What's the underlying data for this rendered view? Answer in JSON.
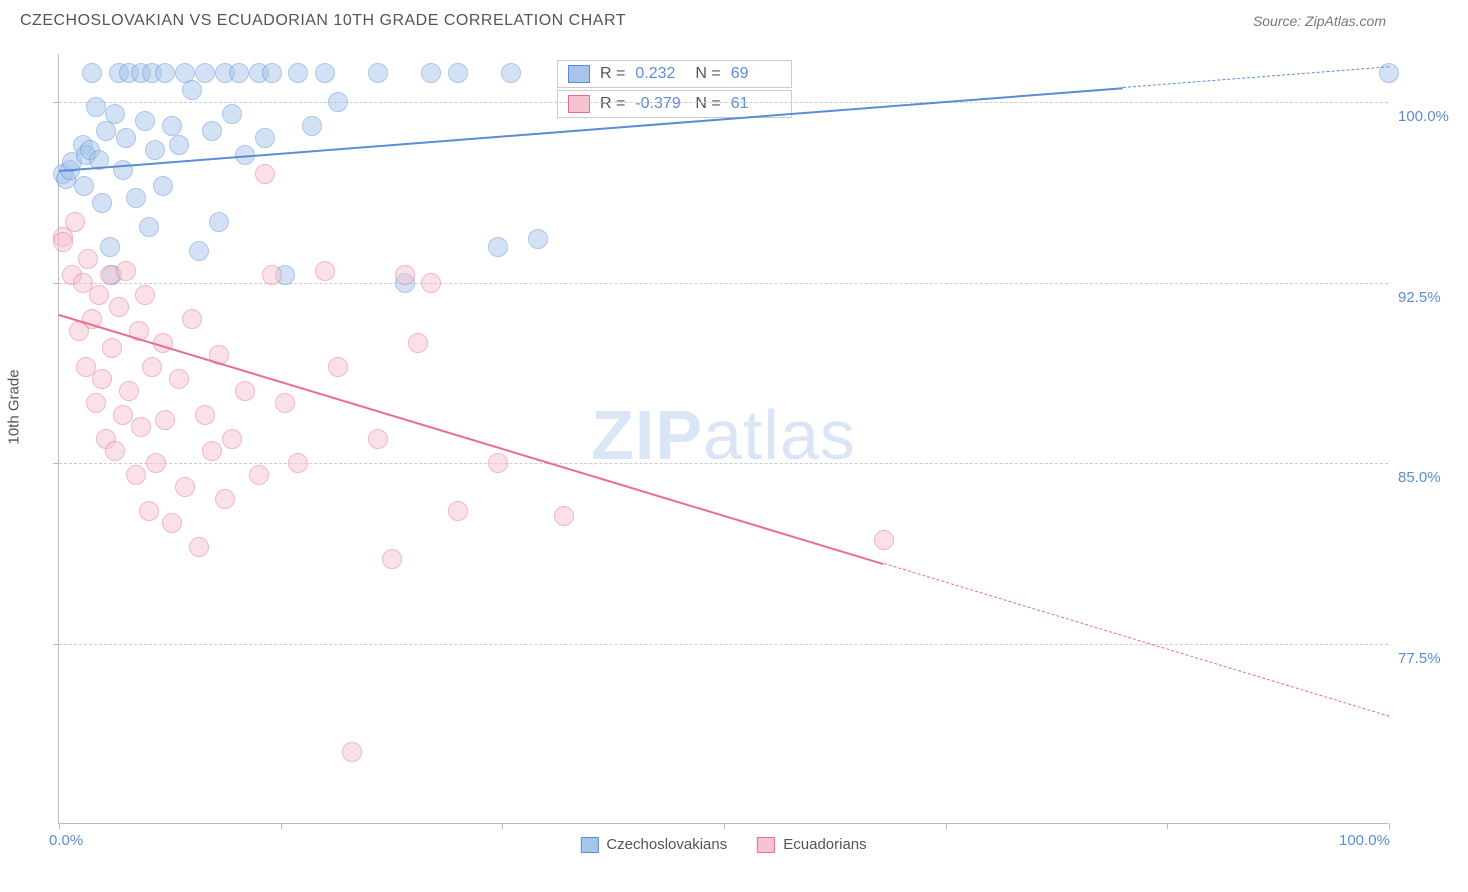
{
  "title": "CZECHOSLOVAKIAN VS ECUADORIAN 10TH GRADE CORRELATION CHART",
  "source": "Source: ZipAtlas.com",
  "y_axis_label": "10th Grade",
  "watermark_bold": "ZIP",
  "watermark_light": "atlas",
  "colors": {
    "series_a_fill": "#a7c5ea",
    "series_a_stroke": "#5b8dd6",
    "series_b_fill": "#f6c4d0",
    "series_b_stroke": "#e86f91",
    "tick_text": "#5b8dd6",
    "grid": "#cccccc",
    "axis": "#bbbbbb",
    "title_text": "#555555"
  },
  "chart": {
    "type": "scatter",
    "xlim": [
      0,
      100
    ],
    "ylim": [
      70,
      102
    ],
    "y_ticks": [
      {
        "v": 100.0,
        "label": "100.0%"
      },
      {
        "v": 92.5,
        "label": "92.5%"
      },
      {
        "v": 85.0,
        "label": "85.0%"
      },
      {
        "v": 77.5,
        "label": "77.5%"
      }
    ],
    "x_ticks_minor": [
      0,
      16.67,
      33.33,
      50,
      66.67,
      83.33,
      100
    ],
    "x_tick_labels": [
      {
        "v": 0,
        "label": "0.0%"
      },
      {
        "v": 100,
        "label": "100.0%"
      }
    ],
    "point_radius": 10,
    "point_opacity": 0.5,
    "series": [
      {
        "name": "Czechoslovakians",
        "color_fill": "#a7c5ea",
        "color_stroke": "#5b8dd6",
        "r_value": "0.232",
        "n_value": "69",
        "trend": {
          "x1": 0,
          "y1": 97.2,
          "x2": 100,
          "y2": 101.5,
          "solid_until_x": 80
        },
        "points": [
          [
            0.3,
            97.0
          ],
          [
            0.5,
            96.8
          ],
          [
            0.8,
            97.2
          ],
          [
            1.0,
            97.5
          ],
          [
            1.8,
            98.2
          ],
          [
            1.9,
            96.5
          ],
          [
            2.0,
            97.8
          ],
          [
            2.3,
            98.0
          ],
          [
            2.5,
            101.2
          ],
          [
            2.8,
            99.8
          ],
          [
            3.0,
            97.6
          ],
          [
            3.2,
            95.8
          ],
          [
            3.5,
            98.8
          ],
          [
            3.8,
            94.0
          ],
          [
            4.0,
            92.8
          ],
          [
            4.2,
            99.5
          ],
          [
            4.5,
            101.2
          ],
          [
            4.8,
            97.2
          ],
          [
            5.0,
            98.5
          ],
          [
            5.3,
            101.2
          ],
          [
            5.8,
            96.0
          ],
          [
            6.2,
            101.2
          ],
          [
            6.5,
            99.2
          ],
          [
            6.8,
            94.8
          ],
          [
            7.0,
            101.2
          ],
          [
            7.2,
            98.0
          ],
          [
            7.8,
            96.5
          ],
          [
            8.0,
            101.2
          ],
          [
            8.5,
            99.0
          ],
          [
            9.0,
            98.2
          ],
          [
            9.5,
            101.2
          ],
          [
            10.0,
            100.5
          ],
          [
            10.5,
            93.8
          ],
          [
            11.0,
            101.2
          ],
          [
            11.5,
            98.8
          ],
          [
            12.0,
            95.0
          ],
          [
            12.5,
            101.2
          ],
          [
            13.0,
            99.5
          ],
          [
            13.5,
            101.2
          ],
          [
            14.0,
            97.8
          ],
          [
            15.0,
            101.2
          ],
          [
            15.5,
            98.5
          ],
          [
            16.0,
            101.2
          ],
          [
            17.0,
            92.8
          ],
          [
            18.0,
            101.2
          ],
          [
            19.0,
            99.0
          ],
          [
            20.0,
            101.2
          ],
          [
            21.0,
            100.0
          ],
          [
            24.0,
            101.2
          ],
          [
            26.0,
            92.5
          ],
          [
            28.0,
            101.2
          ],
          [
            30.0,
            101.2
          ],
          [
            33.0,
            94.0
          ],
          [
            34.0,
            101.2
          ],
          [
            36.0,
            94.3
          ],
          [
            100.0,
            101.2
          ]
        ]
      },
      {
        "name": "Ecuadorians",
        "color_fill": "#f6c4d0",
        "color_stroke": "#e86f91",
        "r_value": "-0.379",
        "n_value": "61",
        "trend": {
          "x1": 0,
          "y1": 91.2,
          "x2": 100,
          "y2": 74.5,
          "solid_until_x": 62
        },
        "points": [
          [
            0.3,
            94.4
          ],
          [
            0.3,
            94.2
          ],
          [
            1.0,
            92.8
          ],
          [
            1.2,
            95.0
          ],
          [
            1.5,
            90.5
          ],
          [
            1.8,
            92.5
          ],
          [
            2.0,
            89.0
          ],
          [
            2.2,
            93.5
          ],
          [
            2.5,
            91.0
          ],
          [
            2.8,
            87.5
          ],
          [
            3.0,
            92.0
          ],
          [
            3.2,
            88.5
          ],
          [
            3.5,
            86.0
          ],
          [
            3.8,
            92.8
          ],
          [
            4.0,
            89.8
          ],
          [
            4.2,
            85.5
          ],
          [
            4.5,
            91.5
          ],
          [
            4.8,
            87.0
          ],
          [
            5.0,
            93.0
          ],
          [
            5.3,
            88.0
          ],
          [
            5.8,
            84.5
          ],
          [
            6.0,
            90.5
          ],
          [
            6.2,
            86.5
          ],
          [
            6.5,
            92.0
          ],
          [
            6.8,
            83.0
          ],
          [
            7.0,
            89.0
          ],
          [
            7.3,
            85.0
          ],
          [
            7.8,
            90.0
          ],
          [
            8.0,
            86.8
          ],
          [
            8.5,
            82.5
          ],
          [
            9.0,
            88.5
          ],
          [
            9.5,
            84.0
          ],
          [
            10.0,
            91.0
          ],
          [
            10.5,
            81.5
          ],
          [
            11.0,
            87.0
          ],
          [
            11.5,
            85.5
          ],
          [
            12.0,
            89.5
          ],
          [
            12.5,
            83.5
          ],
          [
            13.0,
            86.0
          ],
          [
            14.0,
            88.0
          ],
          [
            15.0,
            84.5
          ],
          [
            15.5,
            97.0
          ],
          [
            16.0,
            92.8
          ],
          [
            17.0,
            87.5
          ],
          [
            18.0,
            85.0
          ],
          [
            20.0,
            93.0
          ],
          [
            21.0,
            89.0
          ],
          [
            22.0,
            73.0
          ],
          [
            24.0,
            86.0
          ],
          [
            25.0,
            81.0
          ],
          [
            26.0,
            92.8
          ],
          [
            27.0,
            90.0
          ],
          [
            28.0,
            92.5
          ],
          [
            30.0,
            83.0
          ],
          [
            33.0,
            85.0
          ],
          [
            38.0,
            82.8
          ],
          [
            62.0,
            81.8
          ]
        ]
      }
    ]
  },
  "legend_stats": {
    "label_r": "R =",
    "label_n": "N ="
  },
  "bottom_legend": [
    {
      "label": "Czechoslovakians",
      "fill": "#a7c5ea",
      "stroke": "#5b8dd6"
    },
    {
      "label": "Ecuadorians",
      "fill": "#f6c4d0",
      "stroke": "#e86f91"
    }
  ]
}
